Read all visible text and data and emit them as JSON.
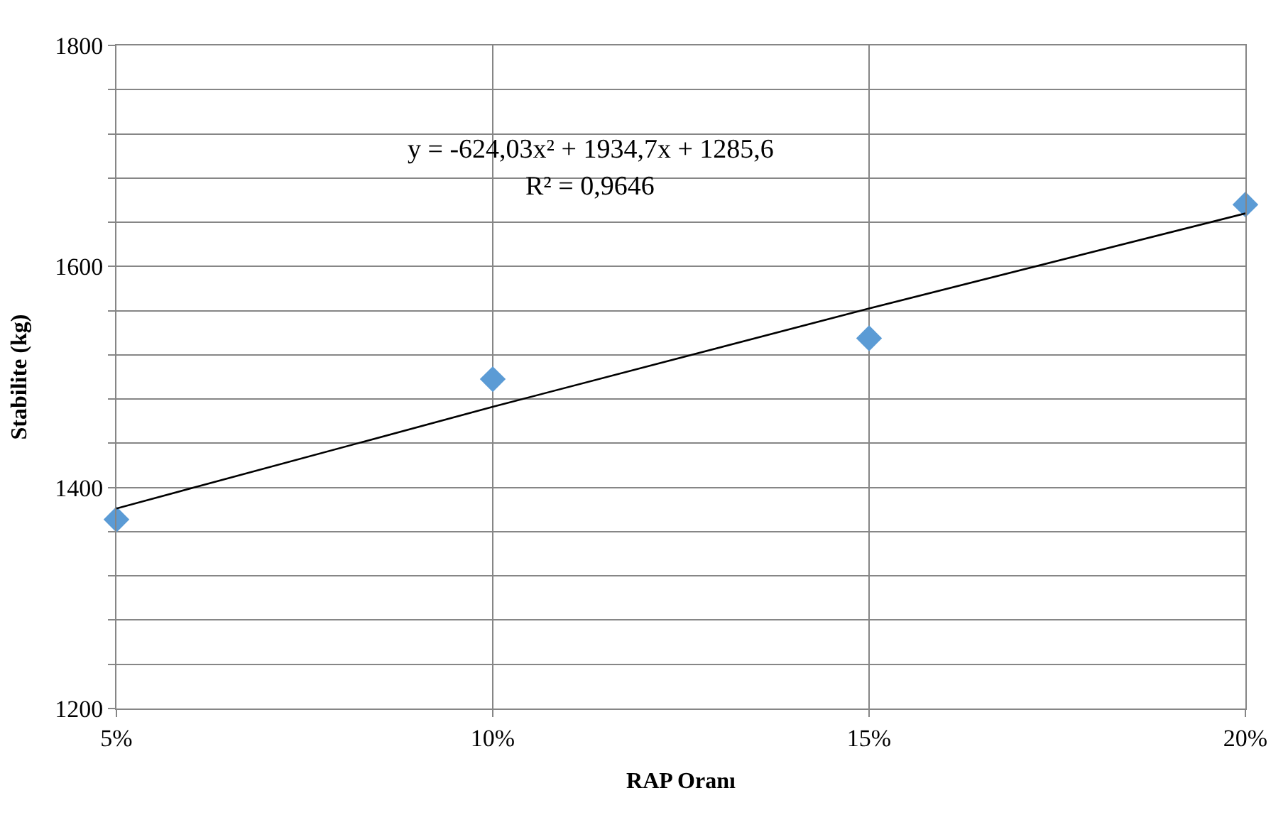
{
  "chart_data": {
    "type": "scatter",
    "xlabel": "RAP Oranı",
    "ylabel": "Stabilite (kg)",
    "xlim": [
      0.05,
      0.2
    ],
    "xticks": [
      {
        "value": 0.05,
        "label": "5%"
      },
      {
        "value": 0.1,
        "label": "10%"
      },
      {
        "value": 0.15,
        "label": "15%"
      },
      {
        "value": 0.2,
        "label": "20%"
      }
    ],
    "ylim": [
      1200,
      1800
    ],
    "yticks": [
      1200,
      {
        "value": 1240,
        "label": null
      },
      {
        "value": 1280,
        "label": null
      },
      {
        "value": 1320,
        "label": null
      },
      {
        "value": 1360,
        "label": null
      },
      1400,
      {
        "value": 1440,
        "label": null
      },
      {
        "value": 1480,
        "label": null
      },
      {
        "value": 1520,
        "label": null
      },
      {
        "value": 1560,
        "label": null
      },
      1600,
      {
        "value": 1640,
        "label": null
      },
      {
        "value": 1680,
        "label": null
      },
      {
        "value": 1720,
        "label": null
      },
      {
        "value": 1760,
        "label": null
      },
      1800
    ],
    "grid": true,
    "legend": false,
    "series": [
      {
        "color": "#5b9bd5",
        "marker": "diamond",
        "x": [
          0.05,
          0.1,
          0.15,
          0.2
        ],
        "values": [
          1371,
          1498,
          1535,
          1656
        ]
      },
      {
        "type": "line",
        "color": "#000000",
        "marker": "none",
        "line_style": "solid",
        "x": [
          0.05,
          0.1,
          0.15,
          0.2
        ],
        "values": [
          1381,
          1473,
          1562,
          1648
        ]
      }
    ],
    "annotations": [
      "y = -624,03x² + 1934,7x + 1285,6",
      "R² = 0,9646"
    ]
  }
}
